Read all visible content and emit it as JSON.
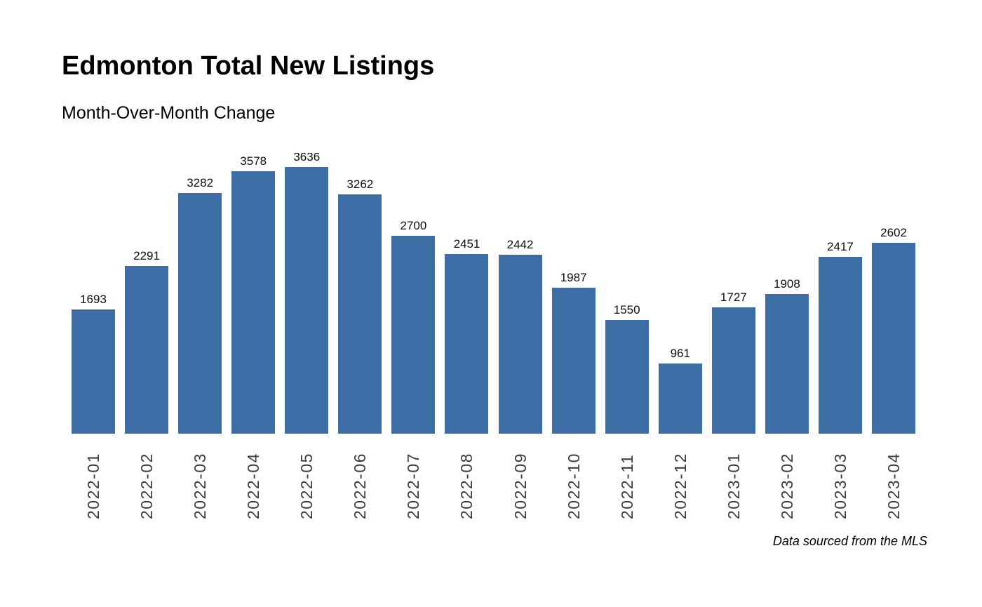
{
  "header": {
    "title": "Edmonton Total New Listings",
    "subtitle": "Month-Over-Month Change"
  },
  "footer": {
    "note": "Data sourced from the MLS"
  },
  "colors": {
    "bar": "#3c6ea5",
    "value_label": "#0d0d0d",
    "tick_label": "#3c3c3c",
    "background": "#ffffff"
  },
  "chart_data": {
    "type": "bar",
    "title": "Edmonton Total New Listings",
    "subtitle": "Month-Over-Month Change",
    "xlabel": "",
    "ylabel": "",
    "categories": [
      "2022-01",
      "2022-02",
      "2022-03",
      "2022-04",
      "2022-05",
      "2022-06",
      "2022-07",
      "2022-08",
      "2022-09",
      "2022-10",
      "2022-11",
      "2022-12",
      "2023-01",
      "2023-02",
      "2023-03",
      "2023-04"
    ],
    "values": [
      1693,
      2291,
      3282,
      3578,
      3636,
      3262,
      2700,
      2451,
      2442,
      1987,
      1550,
      961,
      1727,
      1908,
      2417,
      2602
    ],
    "ylim": [
      0,
      3830
    ],
    "grid": false,
    "legend": false,
    "value_labels_shown": true,
    "xtick_rotation_degrees": 90,
    "annotation": "Data sourced from the MLS"
  }
}
